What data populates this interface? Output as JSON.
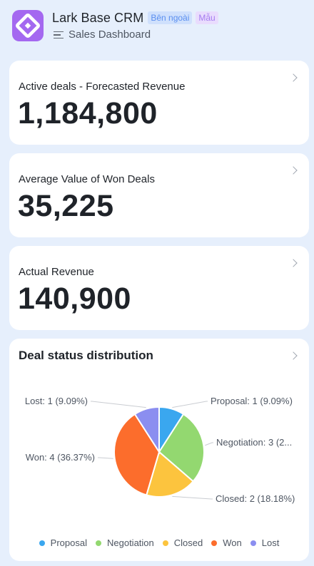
{
  "header": {
    "title": "Lark Base CRM",
    "tag_external": "Bên ngoài",
    "tag_template": "Mẫu",
    "subtitle": "Sales Dashboard"
  },
  "metrics": [
    {
      "label": "Active deals - Forecasted Revenue",
      "value": "1,184,800"
    },
    {
      "label": "Average Value of Won Deals",
      "value": "35,225"
    },
    {
      "label": "Actual Revenue",
      "value": "140,900"
    }
  ],
  "chart": {
    "title": "Deal status distribution"
  },
  "chart_data": {
    "type": "pie",
    "title": "Deal status distribution",
    "legend_position": "bottom",
    "slices": [
      {
        "name": "Proposal",
        "value": 1,
        "label": "Proposal: 1 (9.09%)",
        "color": "#3aa7ef"
      },
      {
        "name": "Negotiation",
        "value": 3,
        "label": "Negotiation: 3 (2...",
        "color": "#93d870"
      },
      {
        "name": "Closed",
        "value": 2,
        "label": "Closed: 2 (18.18%)",
        "color": "#fcc43e"
      },
      {
        "name": "Won",
        "value": 4,
        "label": "Won: 4 (36.37%)",
        "color": "#fc6d2c"
      },
      {
        "name": "Lost",
        "value": 1,
        "label": "Lost: 1 (9.09%)",
        "color": "#8b8ef0"
      }
    ]
  },
  "icons": {
    "logo": "app-logo-icon",
    "menu": "menu-icon",
    "chevron": "chevron-right-icon"
  },
  "colors": {
    "background": "#e6effc",
    "logo": "#a468f0"
  }
}
